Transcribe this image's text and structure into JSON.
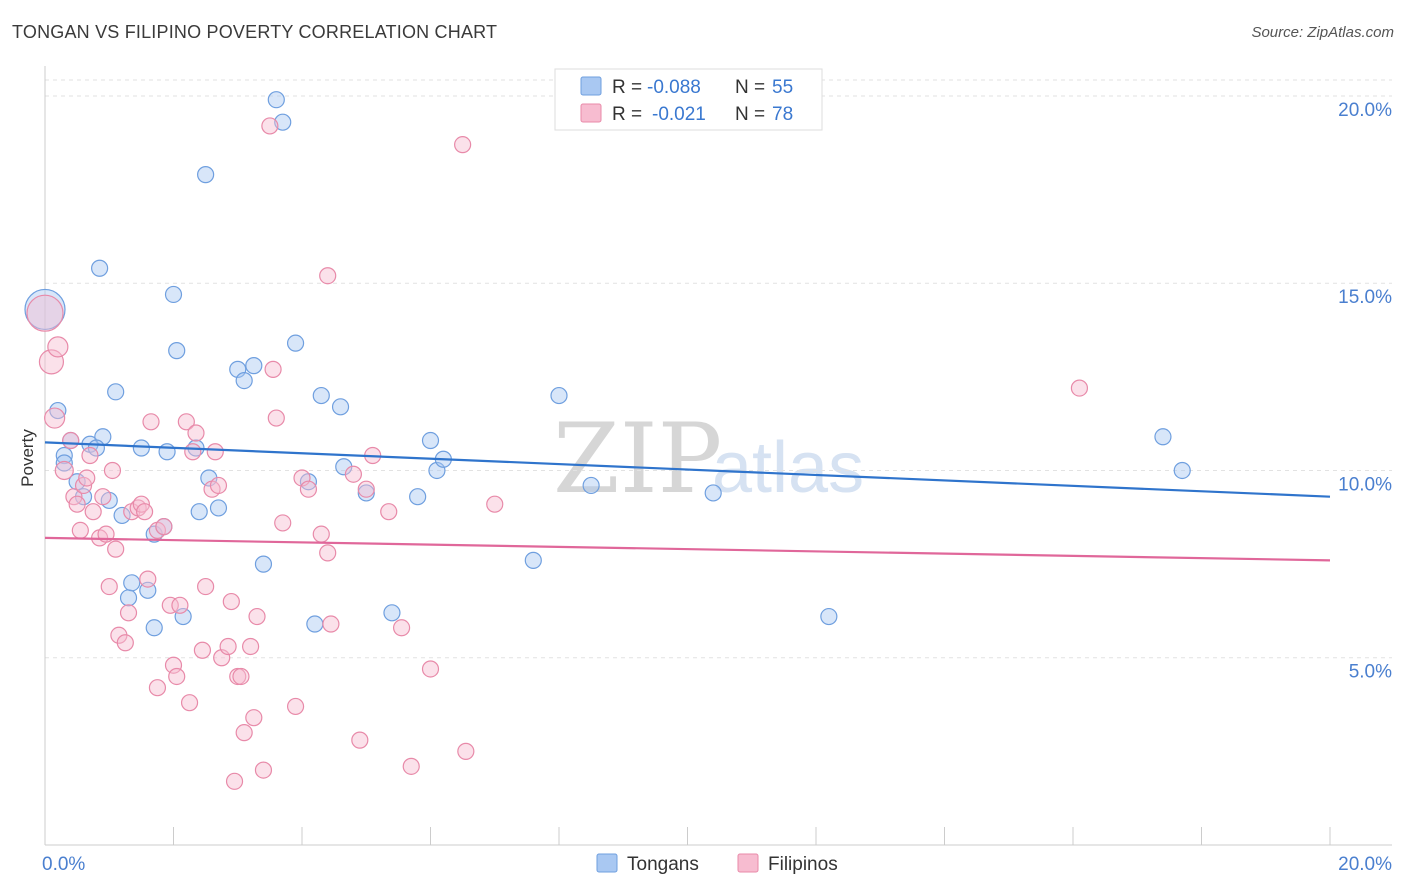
{
  "header": {
    "title": "TONGAN VS FILIPINO POVERTY CORRELATION CHART",
    "source": "Source: ZipAtlas.com"
  },
  "watermark": {
    "zip": "ZIP",
    "atlas": "atlas"
  },
  "legend": {
    "rows": [
      {
        "r_label": "R =",
        "r_value": "-0.088",
        "n_label": "N =",
        "n_value": "55",
        "color": "#a9c8f2",
        "stroke": "#6f9fdf"
      },
      {
        "r_label": "R =",
        "r_value": "-0.021",
        "n_label": "N =",
        "n_value": "78",
        "color": "#f7bcd0",
        "stroke": "#e88aa9"
      }
    ]
  },
  "bottom_legend": [
    {
      "label": "Tongans",
      "color": "#a9c8f2",
      "stroke": "#6f9fdf"
    },
    {
      "label": "Filipinos",
      "color": "#f7bcd0",
      "stroke": "#e88aa9"
    }
  ],
  "chart_data": {
    "type": "scatter",
    "title": "TONGAN VS FILIPINO POVERTY CORRELATION CHART",
    "xlabel": "",
    "ylabel": "Poverty",
    "xlim": [
      0,
      20
    ],
    "ylim": [
      0,
      20.8
    ],
    "x_tick_labels": [
      "0.0%",
      "20.0%"
    ],
    "y_ticks": [
      5,
      10,
      15,
      20
    ],
    "y_tick_labels": [
      "5.0%",
      "10.0%",
      "15.0%",
      "20.0%"
    ],
    "grid": true,
    "series": [
      {
        "name": "Tongans",
        "color": "#a9c8f2",
        "stroke": "#6f9fdf",
        "line_color": "#2f74cc",
        "trend": [
          [
            0,
            10.75
          ],
          [
            20,
            9.3
          ]
        ],
        "points": [
          [
            0.0,
            14.3,
            22
          ],
          [
            0.2,
            11.6,
            10
          ],
          [
            0.3,
            10.4,
            10
          ],
          [
            0.4,
            10.8,
            10
          ],
          [
            0.3,
            10.2,
            10
          ],
          [
            0.5,
            9.7,
            10
          ],
          [
            0.6,
            9.3,
            10
          ],
          [
            0.7,
            10.7,
            10
          ],
          [
            0.9,
            10.9,
            10
          ],
          [
            1.0,
            9.2,
            10
          ],
          [
            0.85,
            15.4,
            10
          ],
          [
            1.1,
            12.1,
            10
          ],
          [
            1.2,
            8.8,
            10
          ],
          [
            1.3,
            6.6,
            10
          ],
          [
            1.35,
            7.0,
            10
          ],
          [
            1.5,
            10.6,
            10
          ],
          [
            1.6,
            6.8,
            10
          ],
          [
            1.7,
            8.3,
            10
          ],
          [
            1.7,
            5.8,
            10
          ],
          [
            1.85,
            8.5,
            10
          ],
          [
            1.9,
            10.5,
            10
          ],
          [
            2.0,
            14.7,
            10
          ],
          [
            2.05,
            13.2,
            10
          ],
          [
            2.15,
            6.1,
            10
          ],
          [
            2.35,
            10.6,
            10
          ],
          [
            2.4,
            8.9,
            10
          ],
          [
            2.5,
            17.9,
            10
          ],
          [
            2.55,
            9.8,
            10
          ],
          [
            2.7,
            9.0,
            10
          ],
          [
            3.0,
            12.7,
            10
          ],
          [
            3.1,
            12.4,
            10
          ],
          [
            3.25,
            12.8,
            10
          ],
          [
            3.4,
            7.5,
            10
          ],
          [
            3.6,
            19.9,
            10
          ],
          [
            3.7,
            19.3,
            10
          ],
          [
            3.9,
            13.4,
            10
          ],
          [
            4.1,
            9.7,
            10
          ],
          [
            4.2,
            5.9,
            10
          ],
          [
            4.3,
            12.0,
            10
          ],
          [
            4.6,
            11.7,
            10
          ],
          [
            4.65,
            10.1,
            10
          ],
          [
            5.0,
            9.4,
            10
          ],
          [
            5.4,
            6.2,
            10
          ],
          [
            5.8,
            9.3,
            10
          ],
          [
            6.0,
            10.8,
            10
          ],
          [
            6.1,
            10.0,
            10
          ],
          [
            6.2,
            10.3,
            10
          ],
          [
            7.6,
            7.6,
            10
          ],
          [
            8.0,
            12.0,
            10
          ],
          [
            8.5,
            9.6,
            10
          ],
          [
            10.4,
            9.4,
            10
          ],
          [
            12.2,
            6.1,
            10
          ],
          [
            17.4,
            10.9,
            10
          ],
          [
            17.7,
            10.0,
            10
          ],
          [
            0.8,
            10.6,
            10
          ]
        ]
      },
      {
        "name": "Filipinos",
        "color": "#f7bcd0",
        "stroke": "#e88aa9",
        "line_color": "#e0679a",
        "trend": [
          [
            0,
            8.2
          ],
          [
            20,
            7.6
          ]
        ],
        "points": [
          [
            0.0,
            14.2,
            20
          ],
          [
            0.1,
            12.9,
            14
          ],
          [
            0.2,
            13.3,
            12
          ],
          [
            0.15,
            11.4,
            12
          ],
          [
            0.3,
            10.0,
            11
          ],
          [
            0.4,
            10.8,
            10
          ],
          [
            0.45,
            9.3,
            10
          ],
          [
            0.5,
            9.1,
            10
          ],
          [
            0.55,
            8.4,
            10
          ],
          [
            0.6,
            9.6,
            10
          ],
          [
            0.65,
            9.8,
            10
          ],
          [
            0.7,
            10.4,
            10
          ],
          [
            0.75,
            8.9,
            10
          ],
          [
            0.85,
            8.2,
            10
          ],
          [
            0.9,
            9.3,
            10
          ],
          [
            0.95,
            8.3,
            10
          ],
          [
            1.0,
            6.9,
            10
          ],
          [
            1.05,
            10.0,
            10
          ],
          [
            1.1,
            7.9,
            10
          ],
          [
            1.15,
            5.6,
            10
          ],
          [
            1.25,
            5.4,
            10
          ],
          [
            1.3,
            6.2,
            10
          ],
          [
            1.35,
            8.9,
            10
          ],
          [
            1.45,
            9.0,
            10
          ],
          [
            1.5,
            9.1,
            10
          ],
          [
            1.55,
            8.9,
            10
          ],
          [
            1.6,
            7.1,
            10
          ],
          [
            1.65,
            11.3,
            10
          ],
          [
            1.75,
            8.4,
            10
          ],
          [
            1.75,
            4.2,
            10
          ],
          [
            1.85,
            8.5,
            10
          ],
          [
            1.95,
            6.4,
            10
          ],
          [
            2.0,
            4.8,
            10
          ],
          [
            2.05,
            4.5,
            10
          ],
          [
            2.1,
            6.4,
            10
          ],
          [
            2.2,
            11.3,
            10
          ],
          [
            2.25,
            3.8,
            10
          ],
          [
            2.3,
            10.5,
            10
          ],
          [
            2.35,
            11.0,
            10
          ],
          [
            2.45,
            5.2,
            10
          ],
          [
            2.5,
            6.9,
            10
          ],
          [
            2.6,
            9.5,
            10
          ],
          [
            2.65,
            10.5,
            10
          ],
          [
            2.7,
            9.6,
            10
          ],
          [
            2.75,
            5.0,
            10
          ],
          [
            2.85,
            5.3,
            10
          ],
          [
            2.9,
            6.5,
            10
          ],
          [
            2.95,
            1.7,
            10
          ],
          [
            3.0,
            4.5,
            10
          ],
          [
            3.05,
            4.5,
            10
          ],
          [
            3.1,
            3.0,
            10
          ],
          [
            3.2,
            5.3,
            10
          ],
          [
            3.25,
            3.4,
            10
          ],
          [
            3.3,
            6.1,
            10
          ],
          [
            3.4,
            2.0,
            10
          ],
          [
            3.5,
            19.2,
            10
          ],
          [
            3.55,
            12.7,
            10
          ],
          [
            3.6,
            11.4,
            10
          ],
          [
            3.7,
            8.6,
            10
          ],
          [
            3.9,
            3.7,
            10
          ],
          [
            4.0,
            9.8,
            10
          ],
          [
            4.1,
            9.5,
            10
          ],
          [
            4.3,
            8.3,
            10
          ],
          [
            4.4,
            15.2,
            10
          ],
          [
            4.4,
            7.8,
            10
          ],
          [
            4.45,
            5.9,
            10
          ],
          [
            4.8,
            9.9,
            10
          ],
          [
            4.9,
            2.8,
            10
          ],
          [
            5.0,
            9.5,
            10
          ],
          [
            5.1,
            10.4,
            10
          ],
          [
            5.35,
            8.9,
            10
          ],
          [
            5.55,
            5.8,
            10
          ],
          [
            5.7,
            2.1,
            10
          ],
          [
            6.0,
            4.7,
            10
          ],
          [
            6.5,
            18.7,
            10
          ],
          [
            6.55,
            2.5,
            10
          ],
          [
            7.0,
            9.1,
            10
          ],
          [
            16.1,
            12.2,
            10
          ]
        ]
      }
    ]
  }
}
